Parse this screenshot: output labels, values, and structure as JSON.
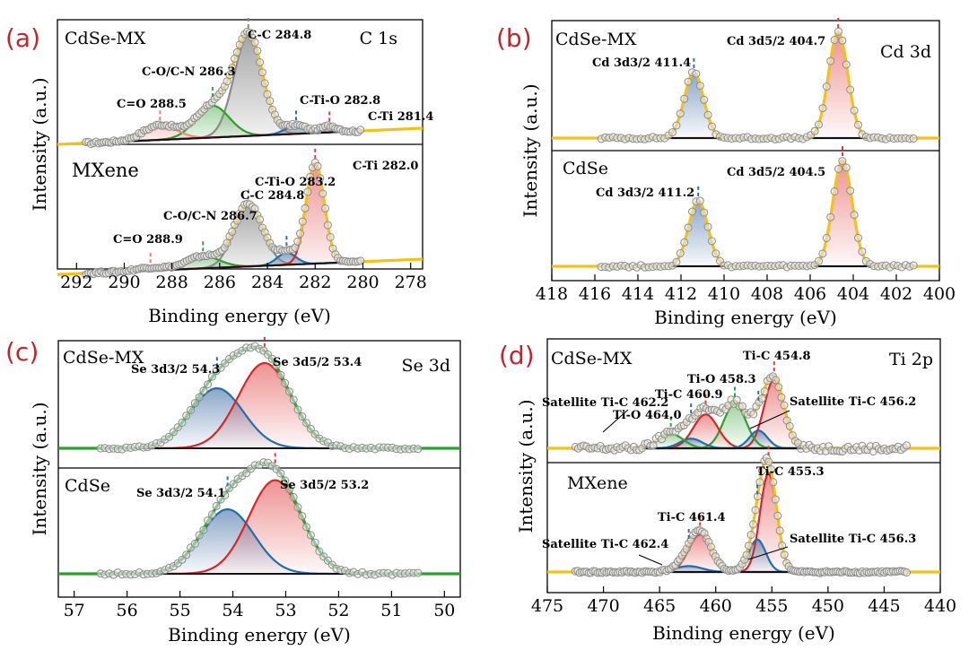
{
  "colors": {
    "red": "#d62728",
    "blue": "#1f6fad",
    "green": "#2ca02c",
    "gray": "#8a8a8a",
    "salmon": "#f08a80",
    "yellow": "#f2c21b",
    "black": "#111111",
    "tick_red": "#e03a3a",
    "tick_blue": "#2f6db0",
    "tick_green": "#2aa84a",
    "tick_pink": "#f07a7a"
  },
  "chart_data": [
    {
      "id": "a",
      "panel_label": "(a)",
      "type": "line",
      "subtype": "xps_deconvolution",
      "element_label": "C 1s",
      "xlabel": "Binding energy (eV)",
      "ylabel": "Intensity (a.u.)",
      "xlim": [
        292.8,
        277.5
      ],
      "x_ticks": [
        292,
        290,
        288,
        286,
        284,
        282,
        280,
        278
      ],
      "baseline_slope": -0.01,
      "subplots": [
        {
          "name": "CdSe-MX",
          "points": 110,
          "range": [
            291.6,
            280.1
          ],
          "peaks": [
            {
              "center": 284.8,
              "height": 0.95,
              "width": 0.6,
              "color": "gray",
              "label": "C-C 284.8"
            },
            {
              "center": 286.3,
              "height": 0.3,
              "width": 0.7,
              "color": "green",
              "label": "C-O/C-N 286.3"
            },
            {
              "center": 288.5,
              "height": 0.14,
              "width": 0.7,
              "color": "salmon",
              "label": "C=O 288.5"
            },
            {
              "center": 282.8,
              "height": 0.08,
              "width": 0.45,
              "color": "blue",
              "label": "C-Ti-O 282.8"
            },
            {
              "center": 281.4,
              "height": 0.06,
              "width": 0.35,
              "color": "red",
              "label": "C-Ti 281.4"
            }
          ]
        },
        {
          "name": "MXene",
          "points": 110,
          "range": [
            291.6,
            280.1
          ],
          "peaks": [
            {
              "center": 284.8,
              "height": 0.62,
              "width": 0.6,
              "color": "gray",
              "label": "C-C 284.8"
            },
            {
              "center": 286.7,
              "height": 0.12,
              "width": 0.7,
              "color": "green",
              "label": "C-O/C-N 286.7"
            },
            {
              "center": 288.9,
              "height": 0.03,
              "width": 0.6,
              "color": "salmon",
              "label": "C=O 288.9"
            },
            {
              "center": 283.2,
              "height": 0.12,
              "width": 0.4,
              "color": "blue",
              "label": "C-Ti-O 283.2"
            },
            {
              "center": 282.0,
              "height": 1.0,
              "width": 0.38,
              "color": "red",
              "label": "C-Ti 282.0"
            }
          ]
        }
      ]
    },
    {
      "id": "b",
      "panel_label": "(b)",
      "type": "line",
      "subtype": "xps_deconvolution",
      "element_label": "Cd 3d",
      "xlabel": "Binding energy (eV)",
      "ylabel": "Intensity (a.u.)",
      "xlim": [
        418,
        400
      ],
      "x_ticks": [
        418,
        416,
        414,
        412,
        410,
        408,
        406,
        404,
        402,
        400
      ],
      "baseline_slope": 0,
      "subplots": [
        {
          "name": "CdSe-MX",
          "points": 80,
          "range": [
            415.7,
            401.2
          ],
          "peaks": [
            {
              "center": 411.4,
              "height": 0.62,
              "width": 0.45,
              "color": "blue",
              "label": "Cd 3d3/2 411.4"
            },
            {
              "center": 404.7,
              "height": 1.0,
              "width": 0.45,
              "color": "red",
              "label": "Cd 3d5/2 404.7"
            }
          ]
        },
        {
          "name": "CdSe",
          "points": 80,
          "range": [
            415.7,
            401.2
          ],
          "peaks": [
            {
              "center": 411.2,
              "height": 0.62,
              "width": 0.45,
              "color": "blue",
              "label": "Cd 3d3/2 411.2"
            },
            {
              "center": 404.5,
              "height": 1.0,
              "width": 0.45,
              "color": "red",
              "label": "Cd 3d5/2 404.5"
            }
          ]
        }
      ]
    },
    {
      "id": "c",
      "panel_label": "(c)",
      "type": "line",
      "subtype": "xps_deconvolution",
      "element_label": "Se 3d",
      "xlabel": "Binding energy (eV)",
      "ylabel": "Intensity (a.u.)",
      "xlim": [
        57.3,
        49.7
      ],
      "x_ticks": [
        57,
        56,
        55,
        54,
        53,
        52,
        51,
        50
      ],
      "baseline_slope": 0,
      "subplots": [
        {
          "name": "CdSe-MX",
          "points": 75,
          "range": [
            56.5,
            50.5
          ],
          "peaks": [
            {
              "center": 54.3,
              "height": 0.62,
              "width": 0.5,
              "color": "blue",
              "label": "Se 3d3/2 54.3"
            },
            {
              "center": 53.4,
              "height": 0.88,
              "width": 0.5,
              "color": "red",
              "label": "Se 3d5/2 53.4"
            }
          ]
        },
        {
          "name": "CdSe",
          "points": 75,
          "range": [
            56.5,
            50.5
          ],
          "peaks": [
            {
              "center": 54.1,
              "height": 0.62,
              "width": 0.5,
              "color": "blue",
              "label": "Se 3d3/2 54.1"
            },
            {
              "center": 53.2,
              "height": 0.9,
              "width": 0.5,
              "color": "red",
              "label": "Se 3d5/2 53.2"
            }
          ]
        }
      ]
    },
    {
      "id": "d",
      "panel_label": "(d)",
      "type": "line",
      "subtype": "xps_deconvolution",
      "element_label": "Ti 2p",
      "xlabel": "Binding energy (eV)",
      "ylabel": "Intensity (a.u.)",
      "xlim": [
        475,
        440
      ],
      "x_ticks": [
        475,
        470,
        465,
        460,
        455,
        450,
        445,
        440
      ],
      "baseline_slope": 0,
      "subplots": [
        {
          "name": "CdSe-MX",
          "points": 120,
          "range": [
            472.5,
            443.0
          ],
          "noise": 0.04,
          "peaks": [
            {
              "center": 454.8,
              "height": 0.85,
              "width": 0.9,
              "color": "red",
              "label": "Ti-C 454.8"
            },
            {
              "center": 458.3,
              "height": 0.55,
              "width": 1.0,
              "color": "green",
              "label": "Ti-O 458.3"
            },
            {
              "center": 460.9,
              "height": 0.42,
              "width": 1.1,
              "color": "red",
              "label": "Ti-C 460.9"
            },
            {
              "center": 456.2,
              "height": 0.22,
              "width": 0.8,
              "color": "blue",
              "label": "Satellite Ti-C 456.2"
            },
            {
              "center": 462.2,
              "height": 0.12,
              "width": 1.0,
              "color": "blue",
              "label": "Satellite Ti-C 462.2"
            },
            {
              "center": 464.0,
              "height": 0.18,
              "width": 1.1,
              "color": "green",
              "label": "Ti-O 464.0"
            }
          ]
        },
        {
          "name": "MXene",
          "points": 150,
          "range": [
            472.5,
            443.0
          ],
          "noise": 0,
          "peaks": [
            {
              "center": 455.3,
              "height": 1.0,
              "width": 0.75,
              "color": "red",
              "label": "Ti-C 455.3"
            },
            {
              "center": 461.4,
              "height": 0.38,
              "width": 1.0,
              "color": "red",
              "label": "Ti-C 461.4"
            },
            {
              "center": 456.3,
              "height": 0.33,
              "width": 0.75,
              "color": "blue",
              "label": "Satellite Ti-C 456.3"
            },
            {
              "center": 462.4,
              "height": 0.06,
              "width": 1.2,
              "color": "blue",
              "label": "Satellite Ti-C 462.4"
            }
          ]
        }
      ]
    }
  ]
}
